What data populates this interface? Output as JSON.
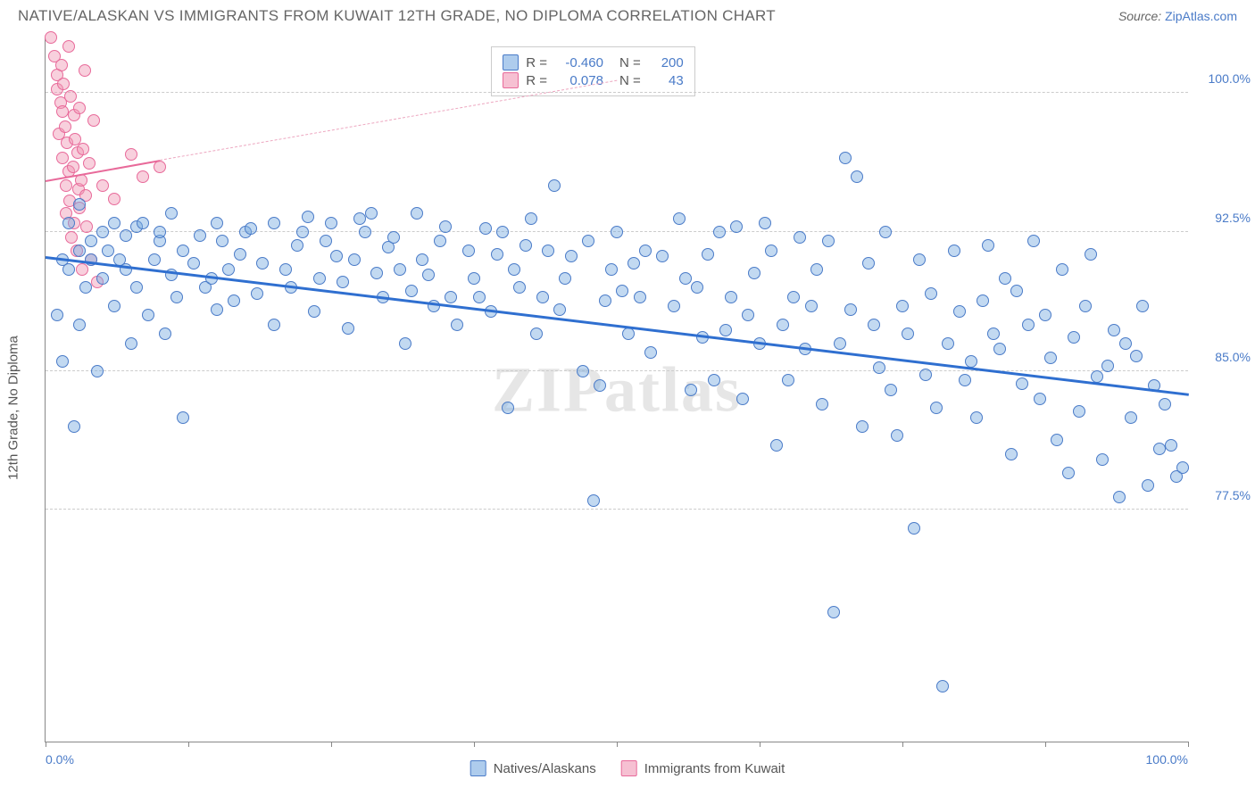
{
  "header": {
    "title": "NATIVE/ALASKAN VS IMMIGRANTS FROM KUWAIT 12TH GRADE, NO DIPLOMA CORRELATION CHART",
    "source_prefix": "Source: ",
    "source_link": "ZipAtlas.com"
  },
  "chart": {
    "type": "scatter",
    "ylabel": "12th Grade, No Diploma",
    "watermark": "ZIPatlas",
    "background_color": "#ffffff",
    "grid_color": "#cccccc",
    "xlim": [
      0,
      100
    ],
    "ylim": [
      65,
      103
    ],
    "ytick_values": [
      77.5,
      85.0,
      92.5,
      100.0
    ],
    "ytick_labels": [
      "77.5%",
      "85.0%",
      "92.5%",
      "100.0%"
    ],
    "xtick_values": [
      0,
      12.5,
      25,
      37.5,
      50,
      62.5,
      75,
      87.5,
      100
    ],
    "xtick_labels_shown": {
      "0": "0.0%",
      "100": "100.0%"
    },
    "marker_size": 14,
    "series": {
      "blue": {
        "label": "Natives/Alaskans",
        "fill_color": "rgba(120,170,225,0.45)",
        "stroke_color": "#4a7bc8",
        "R": "-0.460",
        "N": "200",
        "trend": {
          "x1": 0,
          "y1": 91.2,
          "x2": 100,
          "y2": 83.8,
          "color": "#2f6fd0",
          "width": 2.5
        },
        "points": [
          [
            1,
            88
          ],
          [
            1.5,
            91
          ],
          [
            1.5,
            85.5
          ],
          [
            2,
            93
          ],
          [
            2,
            90.5
          ],
          [
            2.5,
            82
          ],
          [
            3,
            91.5
          ],
          [
            3,
            94
          ],
          [
            3,
            87.5
          ],
          [
            3.5,
            89.5
          ],
          [
            4,
            92
          ],
          [
            4,
            91
          ],
          [
            4.5,
            85
          ],
          [
            5,
            90
          ],
          [
            5,
            92.5
          ],
          [
            5.5,
            91.5
          ],
          [
            6,
            93
          ],
          [
            6,
            88.5
          ],
          [
            6.5,
            91
          ],
          [
            7,
            90.5
          ],
          [
            7,
            92.3
          ],
          [
            7.5,
            86.5
          ],
          [
            8,
            89.5
          ],
          [
            8,
            92.8
          ],
          [
            8.5,
            93
          ],
          [
            9,
            88
          ],
          [
            9.5,
            91
          ],
          [
            10,
            92
          ],
          [
            10,
            92.5
          ],
          [
            10.5,
            87
          ],
          [
            11,
            93.5
          ],
          [
            11,
            90.2
          ],
          [
            11.5,
            89
          ],
          [
            12,
            91.5
          ],
          [
            12,
            82.5
          ],
          [
            13,
            90.8
          ],
          [
            13.5,
            92.3
          ],
          [
            14,
            89.5
          ],
          [
            14.5,
            90
          ],
          [
            15,
            93
          ],
          [
            15,
            88.3
          ],
          [
            15.5,
            92
          ],
          [
            16,
            90.5
          ],
          [
            16.5,
            88.8
          ],
          [
            17,
            91.3
          ],
          [
            17.5,
            92.5
          ],
          [
            18,
            92.7
          ],
          [
            18.5,
            89.2
          ],
          [
            19,
            90.8
          ],
          [
            20,
            87.5
          ],
          [
            20,
            93
          ],
          [
            21,
            90.5
          ],
          [
            21.5,
            89.5
          ],
          [
            22,
            91.8
          ],
          [
            22.5,
            92.5
          ],
          [
            23,
            93.3
          ],
          [
            23.5,
            88.2
          ],
          [
            24,
            90
          ],
          [
            24.5,
            92
          ],
          [
            25,
            93
          ],
          [
            25.5,
            91.2
          ],
          [
            26,
            89.8
          ],
          [
            26.5,
            87.3
          ],
          [
            27,
            91
          ],
          [
            27.5,
            93.2
          ],
          [
            28,
            92.5
          ],
          [
            28.5,
            93.5
          ],
          [
            29,
            90.3
          ],
          [
            29.5,
            89
          ],
          [
            30,
            91.7
          ],
          [
            30.5,
            92.2
          ],
          [
            31,
            90.5
          ],
          [
            31.5,
            86.5
          ],
          [
            32,
            89.3
          ],
          [
            32.5,
            93.5
          ],
          [
            33,
            91
          ],
          [
            33.5,
            90.2
          ],
          [
            34,
            88.5
          ],
          [
            34.5,
            92
          ],
          [
            35,
            92.8
          ],
          [
            35.5,
            89
          ],
          [
            36,
            87.5
          ],
          [
            37,
            91.5
          ],
          [
            37.5,
            90
          ],
          [
            38,
            89
          ],
          [
            38.5,
            92.7
          ],
          [
            39,
            88.2
          ],
          [
            39.5,
            91.3
          ],
          [
            40,
            92.5
          ],
          [
            40.5,
            83
          ],
          [
            41,
            90.5
          ],
          [
            41.5,
            89.5
          ],
          [
            42,
            91.8
          ],
          [
            42.5,
            93.2
          ],
          [
            43,
            87
          ],
          [
            43.5,
            89
          ],
          [
            44,
            91.5
          ],
          [
            44.5,
            95
          ],
          [
            45,
            88.3
          ],
          [
            45.5,
            90
          ],
          [
            46,
            91.2
          ],
          [
            47,
            85
          ],
          [
            47.5,
            92
          ],
          [
            48,
            78
          ],
          [
            48.5,
            84.2
          ],
          [
            49,
            88.8
          ],
          [
            49.5,
            90.5
          ],
          [
            50,
            92.5
          ],
          [
            50.5,
            89.3
          ],
          [
            51,
            87
          ],
          [
            51.5,
            90.8
          ],
          [
            52,
            89
          ],
          [
            52.5,
            91.5
          ],
          [
            53,
            86
          ],
          [
            54,
            91.2
          ],
          [
            55,
            88.5
          ],
          [
            55.5,
            93.2
          ],
          [
            56,
            90
          ],
          [
            56.5,
            84
          ],
          [
            57,
            89.5
          ],
          [
            57.5,
            86.8
          ],
          [
            58,
            91.3
          ],
          [
            58.5,
            84.5
          ],
          [
            59,
            92.5
          ],
          [
            59.5,
            87.2
          ],
          [
            60,
            89
          ],
          [
            60.5,
            92.8
          ],
          [
            61,
            83.5
          ],
          [
            61.5,
            88
          ],
          [
            62,
            90.3
          ],
          [
            62.5,
            86.5
          ],
          [
            63,
            93
          ],
          [
            63.5,
            91.5
          ],
          [
            64,
            81
          ],
          [
            64.5,
            87.5
          ],
          [
            65,
            84.5
          ],
          [
            65.5,
            89
          ],
          [
            66,
            92.2
          ],
          [
            66.5,
            86.2
          ],
          [
            67,
            88.5
          ],
          [
            67.5,
            90.5
          ],
          [
            68,
            83.2
          ],
          [
            68.5,
            92
          ],
          [
            69,
            72
          ],
          [
            69.5,
            86.5
          ],
          [
            70,
            96.5
          ],
          [
            70.5,
            88.3
          ],
          [
            71,
            95.5
          ],
          [
            71.5,
            82
          ],
          [
            72,
            90.8
          ],
          [
            72.5,
            87.5
          ],
          [
            73,
            85.2
          ],
          [
            73.5,
            92.5
          ],
          [
            74,
            84
          ],
          [
            74.5,
            81.5
          ],
          [
            75,
            88.5
          ],
          [
            75.5,
            87
          ],
          [
            76,
            76.5
          ],
          [
            76.5,
            91
          ],
          [
            77,
            84.8
          ],
          [
            77.5,
            89.2
          ],
          [
            78,
            83
          ],
          [
            78.5,
            68
          ],
          [
            79,
            86.5
          ],
          [
            79.5,
            91.5
          ],
          [
            80,
            88.2
          ],
          [
            80.5,
            84.5
          ],
          [
            81,
            85.5
          ],
          [
            81.5,
            82.5
          ],
          [
            82,
            88.8
          ],
          [
            82.5,
            91.8
          ],
          [
            83,
            87
          ],
          [
            83.5,
            86.2
          ],
          [
            84,
            90
          ],
          [
            84.5,
            80.5
          ],
          [
            85,
            89.3
          ],
          [
            85.5,
            84.3
          ],
          [
            86,
            87.5
          ],
          [
            86.5,
            92
          ],
          [
            87,
            83.5
          ],
          [
            87.5,
            88
          ],
          [
            88,
            85.7
          ],
          [
            88.5,
            81.3
          ],
          [
            89,
            90.5
          ],
          [
            89.5,
            79.5
          ],
          [
            90,
            86.8
          ],
          [
            90.5,
            82.8
          ],
          [
            91,
            88.5
          ],
          [
            91.5,
            91.3
          ],
          [
            92,
            84.7
          ],
          [
            92.5,
            80.2
          ],
          [
            93,
            85.3
          ],
          [
            93.5,
            87.2
          ],
          [
            94,
            78.2
          ],
          [
            94.5,
            86.5
          ],
          [
            95,
            82.5
          ],
          [
            95.5,
            85.8
          ],
          [
            96,
            88.5
          ],
          [
            96.5,
            78.8
          ],
          [
            97,
            84.2
          ],
          [
            97.5,
            80.8
          ],
          [
            98,
            83.2
          ],
          [
            98.5,
            81
          ],
          [
            99,
            79.3
          ],
          [
            99.5,
            79.8
          ]
        ]
      },
      "pink": {
        "label": "Immigrants from Kuwait",
        "fill_color": "rgba(240,150,180,0.45)",
        "stroke_color": "#e86a9a",
        "R": "0.078",
        "N": "43",
        "trend_solid": {
          "x1": 0,
          "y1": 95.3,
          "x2": 10,
          "y2": 96.4,
          "color": "#e86a9a",
          "width": 2
        },
        "trend_dash": {
          "x1": 10,
          "y1": 96.4,
          "x2": 50,
          "y2": 100.7,
          "color": "#eda7c0",
          "width": 1.5
        },
        "points": [
          [
            0.5,
            103
          ],
          [
            0.8,
            102
          ],
          [
            1,
            101
          ],
          [
            1,
            100.2
          ],
          [
            1.2,
            97.8
          ],
          [
            1.3,
            99.5
          ],
          [
            1.4,
            101.5
          ],
          [
            1.5,
            99
          ],
          [
            1.5,
            96.5
          ],
          [
            1.6,
            100.5
          ],
          [
            1.7,
            98.2
          ],
          [
            1.8,
            95
          ],
          [
            1.8,
            93.5
          ],
          [
            1.9,
            97.3
          ],
          [
            2,
            95.8
          ],
          [
            2,
            102.5
          ],
          [
            2.1,
            94.2
          ],
          [
            2.2,
            99.8
          ],
          [
            2.3,
            92.2
          ],
          [
            2.4,
            96
          ],
          [
            2.5,
            98.8
          ],
          [
            2.5,
            93
          ],
          [
            2.6,
            97.5
          ],
          [
            2.7,
            91.5
          ],
          [
            2.8,
            96.8
          ],
          [
            2.9,
            94.8
          ],
          [
            3,
            99.2
          ],
          [
            3,
            93.8
          ],
          [
            3.1,
            95.3
          ],
          [
            3.2,
            90.5
          ],
          [
            3.3,
            97
          ],
          [
            3.4,
            101.2
          ],
          [
            3.5,
            94.5
          ],
          [
            3.6,
            92.8
          ],
          [
            3.8,
            96.2
          ],
          [
            4,
            91
          ],
          [
            4.2,
            98.5
          ],
          [
            4.5,
            89.8
          ],
          [
            5,
            95
          ],
          [
            6,
            94.3
          ],
          [
            7.5,
            96.7
          ],
          [
            8.5,
            95.5
          ],
          [
            10,
            96
          ]
        ]
      }
    },
    "stats_box": {
      "rows": [
        {
          "swatch": "blue",
          "r_label": "R =",
          "r_val": "-0.460",
          "n_label": "N =",
          "n_val": "200"
        },
        {
          "swatch": "pink",
          "r_label": "R =",
          "r_val": "0.078",
          "n_label": "N =",
          "n_val": "43"
        }
      ]
    },
    "legend": [
      {
        "swatch": "blue",
        "label": "Natives/Alaskans"
      },
      {
        "swatch": "pink",
        "label": "Immigrants from Kuwait"
      }
    ]
  }
}
